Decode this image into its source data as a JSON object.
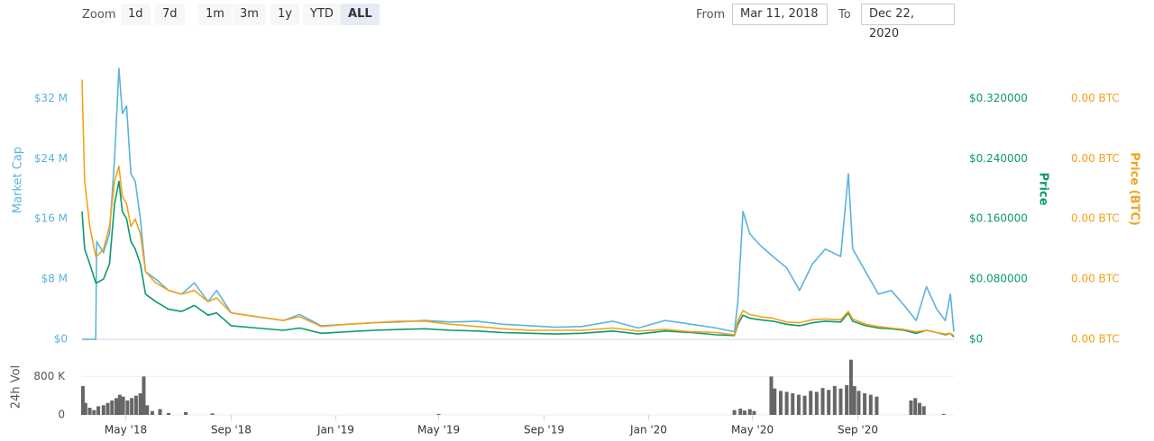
{
  "controls": {
    "zoom_label": "Zoom",
    "zoom_buttons": [
      "1d",
      "7d",
      "1m",
      "3m",
      "1y",
      "YTD",
      "ALL"
    ],
    "active_button": 6,
    "from_label": "From",
    "from": "Mar 11, 2018",
    "to_label": "To",
    "to": "Dec 22, 2020"
  },
  "chart_data": [
    {
      "type": "line",
      "x": [
        "2018-03-11",
        "2018-03-14",
        "2018-03-20",
        "2018-03-27",
        "2018-03-28",
        "2018-04-05",
        "2018-04-12",
        "2018-04-18",
        "2018-04-23",
        "2018-04-27",
        "2018-05-02",
        "2018-05-07",
        "2018-05-12",
        "2018-05-18",
        "2018-05-24",
        "2018-06-05",
        "2018-06-20",
        "2018-07-05",
        "2018-07-20",
        "2018-08-05",
        "2018-08-15",
        "2018-09-01",
        "2018-10-01",
        "2018-11-01",
        "2018-11-20",
        "2018-12-15",
        "2019-01-15",
        "2019-02-15",
        "2019-03-15",
        "2019-04-15",
        "2019-05-15",
        "2019-06-15",
        "2019-07-15",
        "2019-08-15",
        "2019-09-15",
        "2019-10-15",
        "2019-11-20",
        "2019-12-20",
        "2020-01-20",
        "2020-02-20",
        "2020-03-20",
        "2020-04-10",
        "2020-04-14",
        "2020-04-20",
        "2020-04-28",
        "2020-05-10",
        "2020-05-25",
        "2020-06-10",
        "2020-06-25",
        "2020-07-10",
        "2020-07-25",
        "2020-08-12",
        "2020-08-21",
        "2020-08-26",
        "2020-09-10",
        "2020-09-25",
        "2020-10-10",
        "2020-10-25",
        "2020-11-08",
        "2020-11-20",
        "2020-12-02",
        "2020-12-12",
        "2020-12-18",
        "2020-12-22"
      ],
      "xlim": [
        "2018-03-11",
        "2020-12-22"
      ],
      "ylim": [
        0,
        36000000
      ],
      "yticks": [
        {
          "value": 0,
          "label": "$0"
        },
        {
          "value": 8000000,
          "label": "$8 M"
        },
        {
          "value": 16000000,
          "label": "$16 M"
        },
        {
          "value": 24000000,
          "label": "$24 M"
        },
        {
          "value": 32000000,
          "label": "$32 M"
        }
      ],
      "y2lim": [
        0,
        0.36
      ],
      "y2ticks": [
        {
          "value": 0,
          "label": "$0"
        },
        {
          "value": 0.08,
          "label": "$0.080000"
        },
        {
          "value": 0.16,
          "label": "$0.160000"
        },
        {
          "value": 0.24,
          "label": "$0.240000"
        },
        {
          "value": 0.32,
          "label": "$0.320000"
        }
      ],
      "y3lim": [
        0,
        3.6e-05
      ],
      "y3ticks": [
        {
          "value": 0,
          "label": "0.00 BTC"
        },
        {
          "value": 8e-06,
          "label": "0.00 BTC"
        },
        {
          "value": 1.6e-05,
          "label": "0.00 BTC"
        },
        {
          "value": 2.4e-05,
          "label": "0.00 BTC"
        },
        {
          "value": 3.2e-05,
          "label": "0.00 BTC"
        }
      ],
      "series": [
        {
          "name": "Market Cap",
          "color": "#5ab4de",
          "values": [
            0,
            0,
            0,
            0,
            13000000,
            11500000,
            14000000,
            24000000,
            36000000,
            30000000,
            31000000,
            22000000,
            21000000,
            16000000,
            9000000,
            8000000,
            6500000,
            6000000,
            7500000,
            5000000,
            6500000,
            3500000,
            3000000,
            2500000,
            3300000,
            1800000,
            2000000,
            2200000,
            2300000,
            2500000,
            2300000,
            2400000,
            2000000,
            1800000,
            1600000,
            1700000,
            2400000,
            1500000,
            2500000,
            2000000,
            1500000,
            1000000,
            5000000,
            17000000,
            14000000,
            12500000,
            11000000,
            9500000,
            6500000,
            10000000,
            12000000,
            11000000,
            22000000,
            12000000,
            9000000,
            6000000,
            6500000,
            4500000,
            2500000,
            7000000,
            4000000,
            2500000,
            6000000,
            1000000
          ]
        },
        {
          "name": "Price",
          "axis": "y2",
          "color": "#0b9b6b",
          "values": [
            0.17,
            0.12,
            0.1,
            0.075,
            0.075,
            0.08,
            0.1,
            0.18,
            0.21,
            0.17,
            0.16,
            0.13,
            0.12,
            0.1,
            0.06,
            0.05,
            0.04,
            0.037,
            0.045,
            0.032,
            0.035,
            0.018,
            0.015,
            0.012,
            0.015,
            0.008,
            0.01,
            0.012,
            0.013,
            0.014,
            0.012,
            0.011,
            0.009,
            0.008,
            0.007,
            0.008,
            0.011,
            0.007,
            0.011,
            0.009,
            0.006,
            0.005,
            0.02,
            0.032,
            0.028,
            0.026,
            0.024,
            0.02,
            0.018,
            0.022,
            0.024,
            0.023,
            0.035,
            0.024,
            0.018,
            0.015,
            0.014,
            0.012,
            0.008,
            0.012,
            0.009,
            0.006,
            0.008,
            0.003
          ]
        },
        {
          "name": "Price (BTC)",
          "axis": "y3",
          "color": "#f3a21b",
          "values": [
            3.45e-05,
            2.1e-05,
            1.5e-05,
            1.1e-05,
            1.1e-05,
            1.2e-05,
            1.5e-05,
            2.1e-05,
            2.3e-05,
            1.9e-05,
            1.8e-05,
            1.5e-05,
            1.6e-05,
            1.4e-05,
            9e-06,
            7.5e-06,
            6.5e-06,
            6e-06,
            6.5e-06,
            5e-06,
            5.5e-06,
            3.5e-06,
            3e-06,
            2.5e-06,
            3e-06,
            1.7e-06,
            2e-06,
            2.2e-06,
            2.4e-06,
            2.4e-06,
            2e-06,
            1.7e-06,
            1.4e-06,
            1.2e-06,
            1.2e-06,
            1.2e-06,
            1.5e-06,
            1.1e-06,
            1.3e-06,
            1e-06,
            9e-07,
            6e-07,
            2.5e-06,
            3.8e-06,
            3.3e-06,
            3e-06,
            2.8e-06,
            2.3e-06,
            2.2e-06,
            2.6e-06,
            2.7e-06,
            2.6e-06,
            3.7e-06,
            2.7e-06,
            2e-06,
            1.7e-06,
            1.5e-06,
            1.3e-06,
            1e-06,
            1.2e-06,
            9e-07,
            7e-07,
            8e-07,
            5e-07
          ]
        }
      ]
    },
    {
      "type": "bar",
      "x": [
        "2018-03-12",
        "2018-03-15",
        "2018-03-20",
        "2018-03-25",
        "2018-03-30",
        "2018-04-05",
        "2018-04-10",
        "2018-04-15",
        "2018-04-20",
        "2018-04-24",
        "2018-04-28",
        "2018-05-03",
        "2018-05-08",
        "2018-05-13",
        "2018-05-18",
        "2018-05-22",
        "2018-05-26",
        "2018-06-01",
        "2018-06-10",
        "2018-06-20",
        "2018-07-10",
        "2018-08-10",
        "2019-05-01",
        "2020-04-10",
        "2020-04-17",
        "2020-04-22",
        "2020-04-28",
        "2020-05-03",
        "2020-05-23",
        "2020-05-27",
        "2020-06-03",
        "2020-06-10",
        "2020-06-17",
        "2020-06-24",
        "2020-07-01",
        "2020-07-08",
        "2020-07-15",
        "2020-07-22",
        "2020-07-29",
        "2020-08-05",
        "2020-08-12",
        "2020-08-19",
        "2020-08-24",
        "2020-08-28",
        "2020-09-02",
        "2020-09-09",
        "2020-09-16",
        "2020-09-23",
        "2020-11-02",
        "2020-11-07",
        "2020-11-12",
        "2020-11-17",
        "2020-12-10"
      ],
      "xlim": [
        "2018-03-11",
        "2020-12-22"
      ],
      "xticks": [
        {
          "value": "2018-05-01",
          "label": "May '18"
        },
        {
          "value": "2018-09-01",
          "label": "Sep '18"
        },
        {
          "value": "2019-01-01",
          "label": "Jan '19"
        },
        {
          "value": "2019-05-01",
          "label": "May '19"
        },
        {
          "value": "2019-09-01",
          "label": "Sep '19"
        },
        {
          "value": "2020-01-01",
          "label": "Jan '20"
        },
        {
          "value": "2020-05-01",
          "label": "May '20"
        },
        {
          "value": "2020-09-01",
          "label": "Sep '20"
        }
      ],
      "ylim": [
        0,
        1200000
      ],
      "yticks": [
        0,
        {
          "value": 800000,
          "label": "800 K"
        }
      ],
      "series": [
        {
          "name": "24h Vol",
          "color": "#666666",
          "values": [
            600000,
            250000,
            150000,
            100000,
            180000,
            200000,
            250000,
            300000,
            350000,
            420000,
            380000,
            300000,
            350000,
            400000,
            450000,
            800000,
            200000,
            80000,
            120000,
            40000,
            60000,
            30000,
            20000,
            100000,
            130000,
            90000,
            120000,
            80000,
            800000,
            550000,
            500000,
            480000,
            450000,
            420000,
            400000,
            500000,
            480000,
            560000,
            520000,
            600000,
            550000,
            620000,
            1150000,
            600000,
            500000,
            450000,
            420000,
            380000,
            300000,
            350000,
            250000,
            180000,
            20000
          ]
        }
      ]
    }
  ]
}
